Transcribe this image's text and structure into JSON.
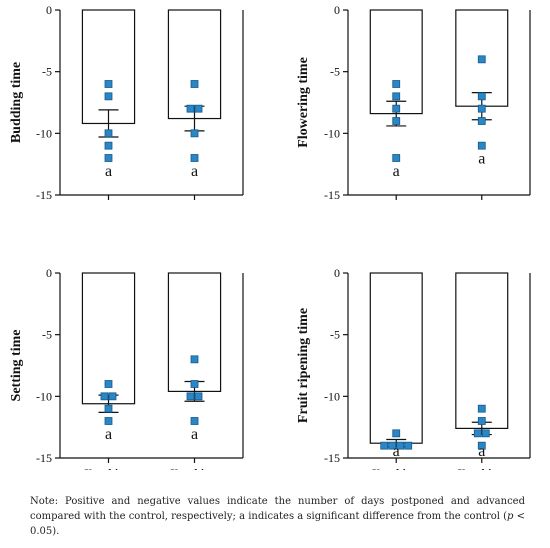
{
  "colors": {
    "point": "#2a86c5",
    "point_stroke": "#155a8a",
    "bar": "#ffffff",
    "axis": "#111111"
  },
  "x_categories": [
    [
      "Xanthium",
      "spinosum"
    ],
    [
      "Xanthium",
      "italicum"
    ]
  ],
  "chart_data": [
    {
      "type": "bar",
      "ylabel": "Budding time",
      "ylim": [
        -15,
        0
      ],
      "ticks": [
        0,
        -5,
        -10,
        -15
      ],
      "categories": [
        "Xanthium spinosum",
        "Xanthium italicum"
      ],
      "values": [
        -9.2,
        -8.8
      ],
      "error": [
        1.1,
        1.0
      ],
      "points": [
        [
          -6,
          -7,
          -10,
          -11,
          -12
        ],
        [
          -6,
          -8,
          -8,
          -10,
          -12
        ]
      ],
      "letters": [
        "a",
        "a"
      ],
      "show_x_labels": false
    },
    {
      "type": "bar",
      "ylabel": "Flowering time",
      "ylim": [
        -15,
        0
      ],
      "ticks": [
        0,
        -5,
        -10,
        -15
      ],
      "categories": [
        "Xanthium spinosum",
        "Xanthium italicum"
      ],
      "values": [
        -8.4,
        -7.8
      ],
      "error": [
        1.0,
        1.1
      ],
      "points": [
        [
          -6,
          -7,
          -8,
          -9,
          -12
        ],
        [
          -4,
          -7,
          -8,
          -9,
          -11
        ]
      ],
      "letters": [
        "a",
        "a"
      ],
      "show_x_labels": false
    },
    {
      "type": "bar",
      "ylabel": "Setting time",
      "ylim": [
        -15,
        0
      ],
      "ticks": [
        0,
        -5,
        -10,
        -15
      ],
      "categories": [
        "Xanthium spinosum",
        "Xanthium italicum"
      ],
      "values": [
        -10.6,
        -9.6
      ],
      "error": [
        0.7,
        0.8
      ],
      "points": [
        [
          -9,
          -10,
          -10,
          -11,
          -12
        ],
        [
          -7,
          -9,
          -10,
          -10,
          -12
        ]
      ],
      "letters": [
        "a",
        "a"
      ],
      "show_x_labels": true
    },
    {
      "type": "bar",
      "ylabel": "Fruit ripening time",
      "ylim": [
        -15,
        0
      ],
      "ticks": [
        0,
        -5,
        -10,
        -15
      ],
      "categories": [
        "Xanthium spinosum",
        "Xanthium italicum"
      ],
      "values": [
        -13.8,
        -12.6
      ],
      "error": [
        0.3,
        0.5
      ],
      "points": [
        [
          -13,
          -14,
          -14,
          -14,
          -14
        ],
        [
          -11,
          -12,
          -13,
          -13,
          -14
        ]
      ],
      "letters": [
        "a",
        "a"
      ],
      "show_x_labels": true
    }
  ],
  "note": {
    "text": "Note: Positive and negative values indicate the number of days postponed and advanced compared with the control, respectively; a indicates a significant difference from the control (",
    "p_symbol": "p",
    "p_tail": " < 0.05)."
  }
}
